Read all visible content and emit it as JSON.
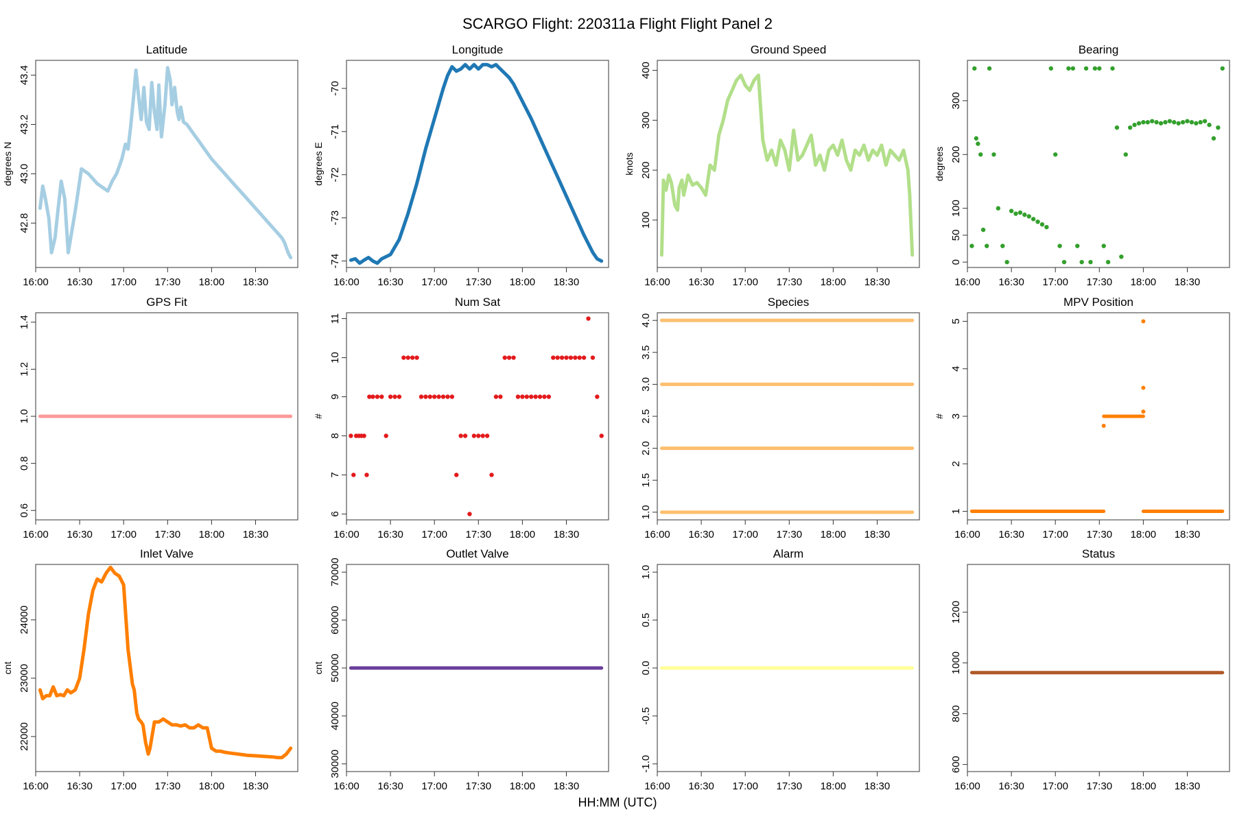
{
  "figure": {
    "title": "SCARGO Flight: 220311a  Flight Flight  Panel 2",
    "xlabel": "HH:MM (UTC)"
  },
  "chart_data": [
    {
      "type": "line",
      "title": "Latitude",
      "ylabel": "degrees N",
      "color": "#A6CEE3",
      "xticks": [
        "16:00",
        "16:30",
        "17:00",
        "17:30",
        "18:00",
        "18:30"
      ],
      "xlim": [
        16.0,
        18.98
      ],
      "ylim": [
        42.62,
        43.46
      ],
      "yticks": [
        "42.8",
        "43.0",
        "43.2",
        "43.4"
      ],
      "x": [
        16.05,
        16.08,
        16.11,
        16.15,
        16.18,
        16.22,
        16.25,
        16.29,
        16.33,
        16.37,
        16.45,
        16.52,
        16.6,
        16.7,
        16.82,
        16.87,
        16.92,
        16.95,
        16.98,
        17.02,
        17.05,
        17.08,
        17.11,
        17.14,
        17.18,
        17.2,
        17.23,
        17.26,
        17.29,
        17.32,
        17.35,
        17.38,
        17.4,
        17.43,
        17.47,
        17.5,
        17.53,
        17.55,
        17.58,
        17.61,
        17.63,
        17.65,
        17.68,
        17.72,
        17.76,
        17.8,
        17.84,
        17.88,
        17.92,
        17.96,
        18.0,
        18.05,
        18.1,
        18.15,
        18.2,
        18.25,
        18.3,
        18.35,
        18.4,
        18.45,
        18.5,
        18.55,
        18.6,
        18.65,
        18.7,
        18.75,
        18.8,
        18.83,
        18.85,
        18.87,
        18.9
      ],
      "y": [
        42.86,
        42.95,
        42.9,
        42.82,
        42.68,
        42.74,
        42.84,
        42.97,
        42.9,
        42.68,
        42.85,
        43.02,
        43.0,
        42.96,
        42.93,
        42.97,
        43.0,
        43.03,
        43.06,
        43.12,
        43.1,
        43.19,
        43.3,
        43.42,
        43.28,
        43.22,
        43.35,
        43.21,
        43.18,
        43.37,
        43.25,
        43.18,
        43.36,
        43.15,
        43.28,
        43.43,
        43.38,
        43.28,
        43.35,
        43.25,
        43.22,
        43.27,
        43.21,
        43.2,
        43.18,
        43.16,
        43.14,
        43.12,
        43.1,
        43.08,
        43.06,
        43.04,
        43.02,
        43.0,
        42.98,
        42.96,
        42.94,
        42.92,
        42.9,
        42.88,
        42.86,
        42.84,
        42.82,
        42.8,
        42.78,
        42.76,
        42.74,
        42.72,
        42.7,
        42.68,
        42.66
      ]
    },
    {
      "type": "line",
      "title": "Longitude",
      "ylabel": "degrees E",
      "color": "#1F78B4",
      "xticks": [
        "16:00",
        "16:30",
        "17:00",
        "17:30",
        "18:00",
        "18:30"
      ],
      "xlim": [
        16.0,
        18.98
      ],
      "ylim": [
        -74.15,
        -69.35
      ],
      "yticks": [
        "-70",
        "-71",
        "-72",
        "-73",
        "-74"
      ],
      "x": [
        16.05,
        16.1,
        16.15,
        16.2,
        16.25,
        16.3,
        16.35,
        16.4,
        16.5,
        16.6,
        16.7,
        16.8,
        16.9,
        17.0,
        17.1,
        17.15,
        17.2,
        17.25,
        17.3,
        17.35,
        17.4,
        17.45,
        17.5,
        17.55,
        17.6,
        17.65,
        17.7,
        17.75,
        17.8,
        17.85,
        17.9,
        17.95,
        18.0,
        18.1,
        18.2,
        18.3,
        18.4,
        18.5,
        18.6,
        18.7,
        18.8,
        18.85,
        18.9
      ],
      "y": [
        -73.98,
        -73.95,
        -74.05,
        -73.98,
        -73.92,
        -74.0,
        -74.05,
        -73.95,
        -73.85,
        -73.5,
        -72.9,
        -72.2,
        -71.4,
        -70.7,
        -70.0,
        -69.7,
        -69.5,
        -69.6,
        -69.55,
        -69.45,
        -69.55,
        -69.45,
        -69.55,
        -69.45,
        -69.45,
        -69.5,
        -69.45,
        -69.55,
        -69.65,
        -69.75,
        -69.9,
        -70.1,
        -70.3,
        -70.7,
        -71.15,
        -71.6,
        -72.05,
        -72.5,
        -72.95,
        -73.4,
        -73.8,
        -73.95,
        -74.0
      ]
    },
    {
      "type": "line",
      "title": "Ground Speed",
      "ylabel": "knots",
      "color": "#B2DF8A",
      "xticks": [
        "16:00",
        "16:30",
        "17:00",
        "17:30",
        "18:00",
        "18:30"
      ],
      "xlim": [
        16.0,
        18.98
      ],
      "ylim": [
        5,
        420
      ],
      "yticks": [
        "100",
        "200",
        "300",
        "400"
      ],
      "x": [
        16.05,
        16.07,
        16.1,
        16.13,
        16.16,
        16.2,
        16.23,
        16.25,
        16.28,
        16.3,
        16.35,
        16.4,
        16.45,
        16.5,
        16.55,
        16.6,
        16.65,
        16.7,
        16.75,
        16.8,
        16.85,
        16.9,
        16.95,
        17.0,
        17.05,
        17.1,
        17.15,
        17.2,
        17.25,
        17.3,
        17.35,
        17.4,
        17.45,
        17.5,
        17.55,
        17.6,
        17.65,
        17.7,
        17.75,
        17.8,
        17.85,
        17.9,
        17.95,
        18.0,
        18.05,
        18.1,
        18.15,
        18.2,
        18.25,
        18.3,
        18.35,
        18.4,
        18.45,
        18.5,
        18.55,
        18.6,
        18.65,
        18.7,
        18.75,
        18.8,
        18.85,
        18.87,
        18.9
      ],
      "y": [
        30,
        180,
        160,
        190,
        175,
        130,
        120,
        165,
        180,
        150,
        190,
        170,
        175,
        165,
        150,
        210,
        200,
        270,
        300,
        340,
        360,
        380,
        390,
        370,
        360,
        380,
        390,
        260,
        220,
        240,
        210,
        260,
        240,
        200,
        280,
        220,
        230,
        250,
        270,
        210,
        230,
        200,
        240,
        250,
        230,
        260,
        220,
        200,
        240,
        230,
        250,
        220,
        240,
        230,
        250,
        210,
        240,
        230,
        220,
        240,
        200,
        150,
        30
      ]
    },
    {
      "type": "scatter",
      "title": "Bearing",
      "ylabel": "degrees",
      "color": "#33A02C",
      "xticks": [
        "16:00",
        "16:30",
        "17:00",
        "17:30",
        "18:00",
        "18:30"
      ],
      "xlim": [
        16.0,
        18.98
      ],
      "ylim": [
        -10,
        375
      ],
      "yticks": [
        "0",
        "50",
        "100",
        "200",
        "300"
      ],
      "x": [
        16.05,
        16.08,
        16.1,
        16.12,
        16.15,
        16.18,
        16.22,
        16.25,
        16.3,
        16.35,
        16.4,
        16.45,
        16.5,
        16.55,
        16.6,
        16.65,
        16.7,
        16.75,
        16.8,
        16.85,
        16.9,
        16.95,
        17.0,
        17.05,
        17.1,
        17.15,
        17.2,
        17.25,
        17.3,
        17.35,
        17.4,
        17.45,
        17.5,
        17.55,
        17.6,
        17.65,
        17.7,
        17.75,
        17.8,
        17.85,
        17.9,
        17.95,
        18.0,
        18.05,
        18.1,
        18.15,
        18.2,
        18.25,
        18.3,
        18.35,
        18.4,
        18.45,
        18.5,
        18.55,
        18.6,
        18.65,
        18.7,
        18.75,
        18.8,
        18.85,
        18.9
      ],
      "y": [
        30,
        360,
        230,
        220,
        200,
        60,
        30,
        360,
        200,
        100,
        30,
        0,
        95,
        90,
        92,
        88,
        85,
        80,
        75,
        70,
        65,
        360,
        200,
        30,
        0,
        360,
        360,
        30,
        0,
        360,
        0,
        360,
        360,
        30,
        0,
        360,
        250,
        10,
        200,
        250,
        255,
        258,
        260,
        260,
        262,
        260,
        258,
        260,
        262,
        260,
        258,
        260,
        262,
        260,
        258,
        260,
        262,
        255,
        230,
        250,
        360
      ]
    },
    {
      "type": "line",
      "title": "GPS Fit",
      "ylabel": "",
      "color": "#FB9A99",
      "xticks": [
        "16:00",
        "16:30",
        "17:00",
        "17:30",
        "18:00",
        "18:30"
      ],
      "xlim": [
        16.0,
        18.98
      ],
      "ylim": [
        0.56,
        1.44
      ],
      "yticks": [
        "0.6",
        "0.8",
        "1.0",
        "1.2",
        "1.4"
      ],
      "x": [
        16.05,
        18.9
      ],
      "y": [
        1.0,
        1.0
      ]
    },
    {
      "type": "scatter",
      "title": "Num Sat",
      "ylabel": "#",
      "color": "#E31A1C",
      "xticks": [
        "16:00",
        "16:30",
        "17:00",
        "17:30",
        "18:00",
        "18:30"
      ],
      "xlim": [
        16.0,
        18.98
      ],
      "ylim": [
        5.85,
        11.15
      ],
      "yticks": [
        "6",
        "7",
        "8",
        "9",
        "10",
        "11"
      ],
      "x": [
        16.05,
        16.08,
        16.11,
        16.14,
        16.17,
        16.2,
        16.23,
        16.26,
        16.3,
        16.35,
        16.4,
        16.45,
        16.5,
        16.55,
        16.6,
        16.65,
        16.7,
        16.75,
        16.8,
        16.85,
        16.9,
        16.95,
        17.0,
        17.05,
        17.1,
        17.15,
        17.2,
        17.25,
        17.3,
        17.35,
        17.4,
        17.45,
        17.5,
        17.55,
        17.6,
        17.65,
        17.7,
        17.75,
        17.8,
        17.85,
        17.9,
        17.95,
        18.0,
        18.05,
        18.1,
        18.15,
        18.2,
        18.25,
        18.3,
        18.35,
        18.4,
        18.45,
        18.5,
        18.55,
        18.6,
        18.65,
        18.7,
        18.75,
        18.8,
        18.85,
        18.9
      ],
      "y": [
        8,
        7,
        8,
        8,
        8,
        8,
        7,
        9,
        9,
        9,
        9,
        8,
        9,
        9,
        9,
        10,
        10,
        10,
        10,
        9,
        9,
        9,
        9,
        9,
        9,
        9,
        9,
        7,
        8,
        8,
        6,
        8,
        8,
        8,
        8,
        7,
        9,
        9,
        10,
        10,
        10,
        9,
        9,
        9,
        9,
        9,
        9,
        9,
        9,
        10,
        10,
        10,
        10,
        10,
        10,
        10,
        10,
        11,
        10,
        9,
        8
      ]
    },
    {
      "type": "scatter",
      "title": "Species",
      "ylabel": "",
      "color": "#FDBF6F",
      "xticks": [
        "16:00",
        "16:30",
        "17:00",
        "17:30",
        "18:00",
        "18:30"
      ],
      "xlim": [
        16.0,
        18.98
      ],
      "ylim": [
        0.88,
        4.12
      ],
      "yticks": [
        "1.0",
        "1.5",
        "2.0",
        "2.5",
        "3.0",
        "3.5",
        "4.0"
      ],
      "levels": [
        1,
        2,
        3,
        4
      ],
      "x": [
        16.05,
        18.9
      ]
    },
    {
      "type": "scatter",
      "title": "MPV Position",
      "ylabel": "#",
      "color": "#FF7F00",
      "xticks": [
        "16:00",
        "16:30",
        "17:00",
        "17:30",
        "18:00",
        "18:30"
      ],
      "xlim": [
        16.0,
        18.98
      ],
      "ylim": [
        0.82,
        5.18
      ],
      "yticks": [
        "1",
        "2",
        "3",
        "4",
        "5"
      ],
      "segments": [
        {
          "x": [
            16.05,
            17.55
          ],
          "y": 1
        },
        {
          "x": [
            17.55,
            18.0
          ],
          "y": 3
        },
        {
          "x": [
            18.0,
            18.9
          ],
          "y": 1
        }
      ],
      "outliers": {
        "x": [
          17.55,
          18.0,
          18.0,
          18.0
        ],
        "y": [
          2.8,
          5.0,
          3.6,
          3.1
        ]
      }
    },
    {
      "type": "line",
      "title": "Inlet Valve",
      "ylabel": "cnt",
      "color": "#FF7F00",
      "xticks": [
        "16:00",
        "16:30",
        "17:00",
        "17:30",
        "18:00",
        "18:30"
      ],
      "xlim": [
        16.0,
        18.98
      ],
      "ylim": [
        21400,
        24950
      ],
      "yticks": [
        "22000",
        "23000",
        "24000"
      ],
      "x": [
        16.05,
        16.08,
        16.12,
        16.16,
        16.2,
        16.24,
        16.28,
        16.32,
        16.36,
        16.4,
        16.45,
        16.5,
        16.55,
        16.6,
        16.65,
        16.7,
        16.75,
        16.8,
        16.85,
        16.9,
        16.95,
        17.0,
        17.05,
        17.1,
        17.12,
        17.15,
        17.17,
        17.2,
        17.22,
        17.25,
        17.28,
        17.3,
        17.35,
        17.4,
        17.45,
        17.5,
        17.55,
        17.6,
        17.65,
        17.7,
        17.75,
        17.8,
        17.85,
        17.9,
        17.95,
        18.0,
        18.05,
        18.1,
        18.15,
        18.2,
        18.3,
        18.4,
        18.5,
        18.6,
        18.7,
        18.75,
        18.8,
        18.85,
        18.9
      ],
      "y": [
        22800,
        22650,
        22700,
        22700,
        22850,
        22700,
        22720,
        22700,
        22800,
        22750,
        22800,
        23000,
        23500,
        24100,
        24500,
        24700,
        24650,
        24800,
        24900,
        24800,
        24750,
        24600,
        23500,
        22900,
        22800,
        22400,
        22300,
        22250,
        22200,
        21900,
        21700,
        21800,
        22250,
        22250,
        22300,
        22250,
        22200,
        22200,
        22180,
        22200,
        22150,
        22150,
        22200,
        22150,
        22150,
        21800,
        21750,
        21750,
        21730,
        21720,
        21700,
        21680,
        21670,
        21660,
        21650,
        21640,
        21640,
        21700,
        21800
      ]
    },
    {
      "type": "line",
      "title": "Outlet Valve",
      "ylabel": "cnt",
      "color": "#6A3D9A",
      "xticks": [
        "16:00",
        "16:30",
        "17:00",
        "17:30",
        "18:00",
        "18:30"
      ],
      "xlim": [
        16.0,
        18.98
      ],
      "ylim": [
        28400,
        71600
      ],
      "yticks": [
        "30000",
        "40000",
        "50000",
        "60000",
        "70000"
      ],
      "x": [
        16.05,
        18.9
      ],
      "y": [
        50000,
        50000
      ]
    },
    {
      "type": "line",
      "title": "Alarm",
      "ylabel": "",
      "color": "#FFFF99",
      "xticks": [
        "16:00",
        "16:30",
        "17:00",
        "17:30",
        "18:00",
        "18:30"
      ],
      "xlim": [
        16.0,
        18.98
      ],
      "ylim": [
        -1.08,
        1.08
      ],
      "yticks": [
        "-1.0",
        "-0.5",
        "0.0",
        "0.5",
        "1.0"
      ],
      "x": [
        16.05,
        18.9
      ],
      "y": [
        0,
        0
      ]
    },
    {
      "type": "line",
      "title": "Status",
      "ylabel": "",
      "color": "#B15928",
      "xticks": [
        "16:00",
        "16:30",
        "17:00",
        "17:30",
        "18:00",
        "18:30"
      ],
      "xlim": [
        16.0,
        18.98
      ],
      "ylim": [
        572,
        1388
      ],
      "yticks": [
        "600",
        "800",
        "1000",
        "1200"
      ],
      "x": [
        16.05,
        18.9
      ],
      "y": [
        962,
        962
      ]
    }
  ]
}
